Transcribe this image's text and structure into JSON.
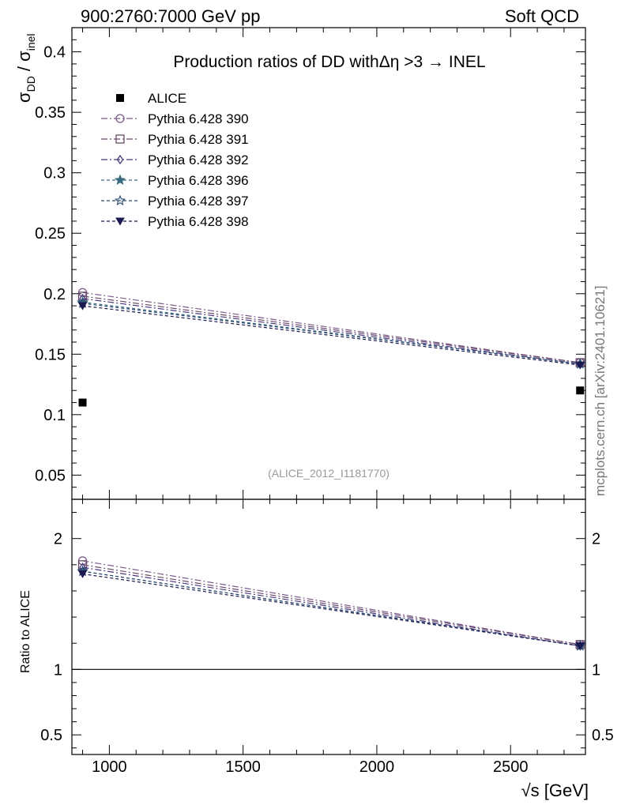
{
  "header": {
    "left": "900:2760:7000 GeV pp",
    "right": "Soft QCD"
  },
  "side_label": "mcplots.cern.ch [arXiv:2401.10621]",
  "watermark": "(ALICE_2012_I1181770)",
  "chart_data": {
    "type": "line",
    "title_prefix": "Production ratios of DD with",
    "title_eta": "Δη",
    "title_suffix": " >3 → INEL",
    "x": [
      900,
      2760
    ],
    "xlim": [
      860,
      2780
    ],
    "xticks": [
      1000,
      1500,
      2000,
      2500
    ],
    "xtick_labels": [
      "1000",
      "1500",
      "2000",
      "2500"
    ],
    "xlabel": "√s [GeV]",
    "ylabel_main": "σ",
    "ylabel_sub1": "DD",
    "ylabel_sep": " / σ",
    "ylabel_sub2": "inel",
    "ylim": [
      0.03,
      0.42
    ],
    "yticks": [
      0.05,
      0.1,
      0.15,
      0.2,
      0.25,
      0.3,
      0.35,
      0.4
    ],
    "ytick_labels": [
      "0.05",
      "0.1",
      "0.15",
      "0.2",
      "0.25",
      "0.3",
      "0.35",
      "0.4"
    ],
    "data": {
      "name": "ALICE",
      "values": [
        0.11,
        0.12
      ]
    },
    "series": [
      {
        "name": "Pythia 6.428 390",
        "values": [
          0.201,
          0.143
        ],
        "color": "#7a5a8a",
        "marker": "circle-open",
        "dash": "8,3,2,3"
      },
      {
        "name": "Pythia 6.428 391",
        "values": [
          0.198,
          0.143
        ],
        "color": "#6a4a6a",
        "marker": "square-open",
        "dash": "8,3,2,3"
      },
      {
        "name": "Pythia 6.428 392",
        "values": [
          0.196,
          0.142
        ],
        "color": "#4a3a80",
        "marker": "diamond-open",
        "dash": "8,3,2,3"
      },
      {
        "name": "Pythia 6.428 396",
        "values": [
          0.193,
          0.142
        ],
        "color": "#3a6a80",
        "marker": "star-filled",
        "dash": "4,3"
      },
      {
        "name": "Pythia 6.428 397",
        "values": [
          0.192,
          0.142
        ],
        "color": "#2a4a70",
        "marker": "star-open",
        "dash": "4,3"
      },
      {
        "name": "Pythia 6.428 398",
        "values": [
          0.19,
          0.141
        ],
        "color": "#1a1a50",
        "marker": "triangle-down-filled",
        "dash": "4,3"
      }
    ],
    "ratio": {
      "ylabel": "Ratio to ALICE",
      "ylim": [
        0.35,
        2.3
      ],
      "yticks": [
        0.5,
        1,
        2
      ],
      "ytick_labels": [
        "0.5",
        "1",
        "2"
      ],
      "reference": 1,
      "series_values": [
        [
          1.83,
          1.19
        ],
        [
          1.8,
          1.19
        ],
        [
          1.78,
          1.18
        ],
        [
          1.75,
          1.18
        ],
        [
          1.75,
          1.18
        ],
        [
          1.73,
          1.18
        ]
      ]
    }
  }
}
